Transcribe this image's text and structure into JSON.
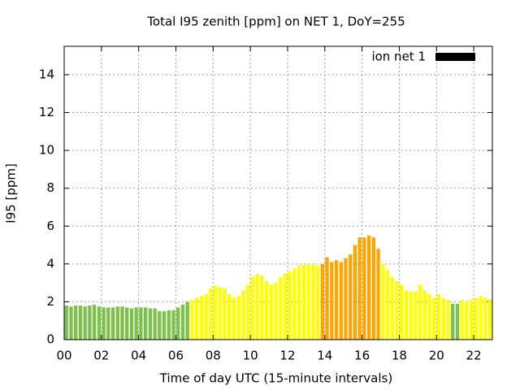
{
  "chart_data": {
    "type": "bar",
    "title": "Total I95 zenith [ppm] on NET 1, DoY=255",
    "x_label": "Time of day UTC (15-minute intervals)",
    "y_label": "I95 [ppm]",
    "xlim": [
      0,
      23
    ],
    "xticks": [
      {
        "value": 0,
        "label": "00"
      },
      {
        "value": 2,
        "label": "02"
      },
      {
        "value": 4,
        "label": "04"
      },
      {
        "value": 6,
        "label": "06"
      },
      {
        "value": 8,
        "label": "08"
      },
      10,
      12,
      14,
      16,
      18,
      20,
      22
    ],
    "ylim": [
      0,
      15.5
    ],
    "yticks": [
      0,
      2,
      4,
      6,
      8,
      10,
      12,
      14
    ],
    "grid": true,
    "legend_position": "top-right",
    "bar_width": 0.25,
    "x": [
      0,
      0.25,
      0.5,
      0.75,
      1,
      1.25,
      1.5,
      1.75,
      2,
      2.25,
      2.5,
      2.75,
      3,
      3.25,
      3.5,
      3.75,
      4,
      4.25,
      4.5,
      4.75,
      5,
      5.25,
      5.5,
      5.75,
      6,
      6.25,
      6.5,
      6.75,
      7,
      7.25,
      7.5,
      7.75,
      8,
      8.25,
      8.5,
      8.75,
      9,
      9.25,
      9.5,
      9.75,
      10,
      10.25,
      10.5,
      10.75,
      11,
      11.25,
      11.5,
      11.75,
      12,
      12.25,
      12.5,
      12.75,
      13,
      13.25,
      13.5,
      13.75,
      14,
      14.25,
      14.5,
      14.75,
      15,
      15.25,
      15.5,
      15.75,
      16,
      16.25,
      16.5,
      16.75,
      17,
      17.25,
      17.5,
      17.75,
      18,
      18.25,
      18.5,
      18.75,
      19,
      19.25,
      19.5,
      19.75,
      20,
      20.25,
      20.5,
      20.75,
      21,
      21.25,
      21.5,
      21.75,
      22,
      22.25,
      22.5,
      22.75
    ],
    "series": [
      {
        "name": "ion net 1",
        "color": "#000000",
        "values": [
          1.8,
          1.75,
          1.8,
          1.8,
          1.75,
          1.8,
          1.85,
          1.75,
          1.7,
          1.7,
          1.7,
          1.75,
          1.75,
          1.7,
          1.65,
          1.7,
          1.7,
          1.7,
          1.65,
          1.65,
          1.5,
          1.5,
          1.55,
          1.55,
          1.7,
          1.85,
          2.0,
          2.1,
          2.2,
          2.3,
          2.4,
          2.7,
          2.85,
          2.75,
          2.7,
          2.4,
          2.2,
          2.3,
          2.6,
          2.9,
          3.3,
          3.45,
          3.4,
          3.1,
          2.9,
          3.0,
          3.3,
          3.5,
          3.6,
          3.75,
          3.9,
          3.95,
          3.95,
          4.0,
          3.9,
          4.0,
          4.35,
          4.1,
          4.2,
          4.1,
          4.3,
          4.5,
          5.0,
          5.4,
          5.4,
          5.5,
          5.4,
          4.8,
          4.0,
          3.7,
          3.3,
          3.1,
          2.9,
          2.6,
          2.55,
          2.55,
          2.9,
          2.6,
          2.4,
          2.2,
          2.4,
          2.2,
          2.1,
          1.9,
          1.9,
          2.1,
          2.0,
          2.1,
          2.2,
          2.3,
          2.2,
          2.15
        ],
        "bar_colors": [
          "#7cc24a",
          "#7cc24a",
          "#7cc24a",
          "#7cc24a",
          "#7cc24a",
          "#7cc24a",
          "#7cc24a",
          "#7cc24a",
          "#7cc24a",
          "#7cc24a",
          "#7cc24a",
          "#7cc24a",
          "#7cc24a",
          "#7cc24a",
          "#7cc24a",
          "#7cc24a",
          "#7cc24a",
          "#7cc24a",
          "#7cc24a",
          "#7cc24a",
          "#7cc24a",
          "#7cc24a",
          "#7cc24a",
          "#7cc24a",
          "#7cc24a",
          "#7cc24a",
          "#7cc24a",
          "#ffff00",
          "#ffff00",
          "#ffff00",
          "#ffff00",
          "#ffff00",
          "#ffff00",
          "#ffff00",
          "#ffff00",
          "#ffff00",
          "#ffff00",
          "#ffff00",
          "#ffff00",
          "#ffff00",
          "#ffff00",
          "#ffff00",
          "#ffff00",
          "#ffff00",
          "#ffff00",
          "#ffff00",
          "#ffff00",
          "#ffff00",
          "#ffff00",
          "#ffff00",
          "#ffff00",
          "#ffff00",
          "#ffff00",
          "#ffff00",
          "#ffff00",
          "#ffa500",
          "#ffa500",
          "#ffa500",
          "#ffa500",
          "#ffa500",
          "#ffa500",
          "#ffa500",
          "#ffa500",
          "#ffa500",
          "#ffa500",
          "#ffa500",
          "#ffa500",
          "#ffa500",
          "#ffff00",
          "#ffff00",
          "#ffff00",
          "#ffff00",
          "#ffff00",
          "#ffff00",
          "#ffff00",
          "#ffff00",
          "#ffff00",
          "#ffff00",
          "#ffff00",
          "#ffff00",
          "#ffff00",
          "#ffff00",
          "#ffff00",
          "#7cc24a",
          "#7cc24a",
          "#ffff00",
          "#ffff00",
          "#ffff00",
          "#ffff00",
          "#ffff00",
          "#ffff00",
          "#ffff00"
        ]
      }
    ]
  }
}
